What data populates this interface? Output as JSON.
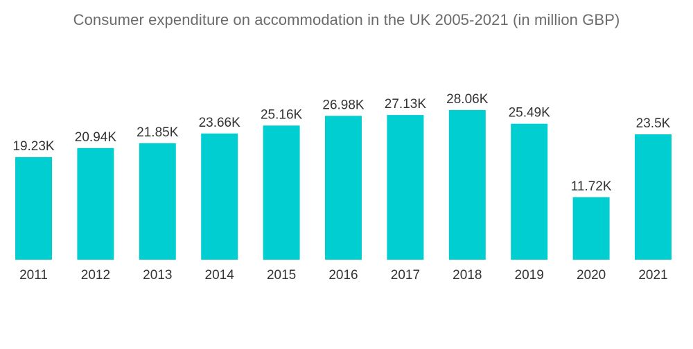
{
  "chart_data": {
    "type": "bar",
    "title": "Consumer expenditure on accommodation in the UK 2005-2021 (in million GBP)",
    "categories": [
      "2011",
      "2012",
      "2013",
      "2014",
      "2015",
      "2016",
      "2017",
      "2018",
      "2019",
      "2020",
      "2021"
    ],
    "values": [
      19.23,
      20.94,
      21.85,
      23.66,
      25.16,
      26.98,
      27.13,
      28.06,
      25.49,
      11.72,
      23.5
    ],
    "value_labels": [
      "19.23K",
      "20.94K",
      "21.85K",
      "23.66K",
      "25.16K",
      "26.98K",
      "27.13K",
      "28.06K",
      "25.49K",
      "11.72K",
      "23.5K"
    ],
    "xlabel": "",
    "ylabel": "",
    "ylim": [
      0,
      35
    ],
    "grid": false,
    "legend": "none",
    "bar_color": "#00CED1"
  }
}
